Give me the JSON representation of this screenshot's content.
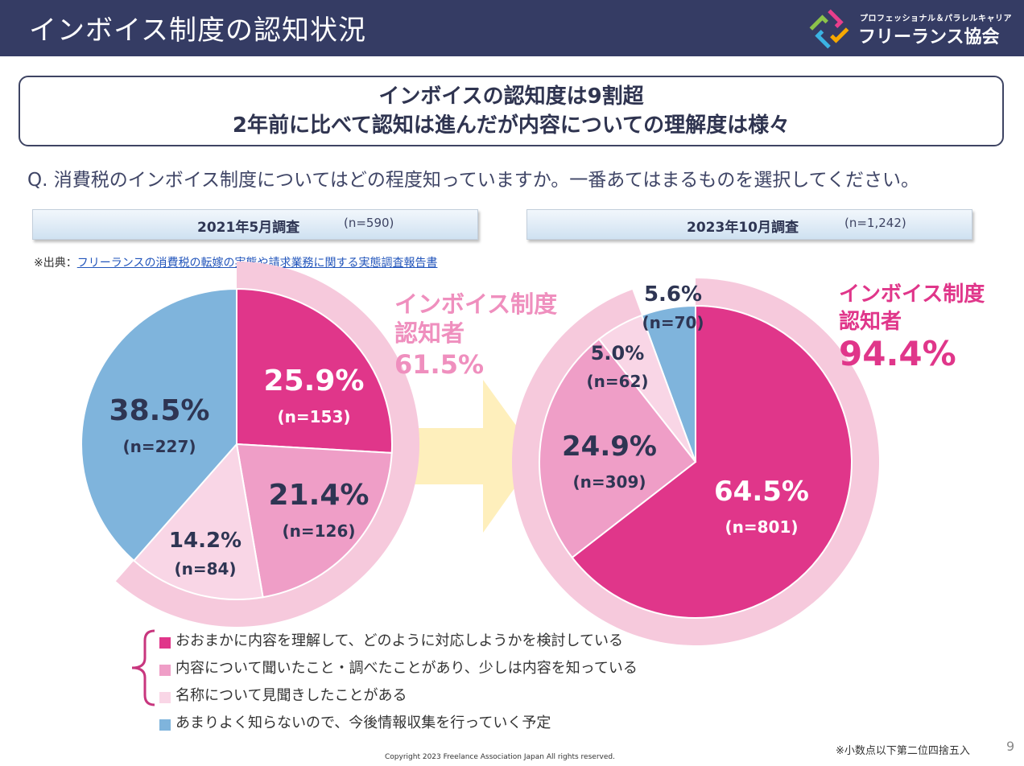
{
  "header": {
    "title": "インボイス制度の認知状況"
  },
  "logo": {
    "tagline": "プロフェッショナル＆パラレルキャリア",
    "name": "フリーランス協会",
    "colors": [
      "#e83e8c",
      "#f6a800",
      "#3bb3e3",
      "#8bc34a"
    ]
  },
  "headline": {
    "line1": "インボイスの認知度は9割超",
    "line2": "2年前に比べて認知は進んだが内容についての理解度は様々"
  },
  "question": "Q. 消費税のインボイス制度についてはどの程度知っていますか。一番あてはまるものを選択してください。",
  "surveys": {
    "left": {
      "label": "2021年5月調査",
      "n": "(n=590)"
    },
    "right": {
      "label": "2023年10月調査",
      "n": "(n=1,242)"
    }
  },
  "source": {
    "prefix": "※出典：",
    "link": "フリーランスの消費税の転嫁の実態や請求業務に関する実態調査報告書"
  },
  "awareness": {
    "left": {
      "line1": "インボイス制度",
      "line2": "認知者",
      "value": "61.5%",
      "color": "#ef8fbe"
    },
    "right": {
      "line1": "インボイス制度",
      "line2": "認知者",
      "value": "94.4%",
      "color": "#e0368a"
    }
  },
  "chart_data": [
    {
      "type": "pie",
      "title": "2021年5月調査",
      "categories": [
        "おおまかに内容を理解して、どのように対応しようかを検討している",
        "内容について聞いたこと・調べたことがあり、少しは内容を知っている",
        "名称について見聞きしたことがある",
        "あまりよく知らないので、今後情報収集を行っていく予定"
      ],
      "values": [
        25.9,
        21.4,
        14.2,
        38.5
      ],
      "labels": [
        "25.9%",
        "21.4%",
        "14.2%",
        "38.5%"
      ],
      "counts": [
        "(n=153)",
        "(n=126)",
        "(n=84)",
        "(n=227)"
      ],
      "colors": [
        "#e0368a",
        "#ef9ec7",
        "#f9d6e6",
        "#7fb4dc"
      ]
    },
    {
      "type": "pie",
      "title": "2023年10月調査",
      "categories": [
        "おおまかに内容を理解して、どのように対応しようかを検討している",
        "内容について聞いたこと・調べたことがあり、少しは内容を知っている",
        "名称について見聞きしたことがある",
        "あまりよく知らないので、今後情報収集を行っていく予定"
      ],
      "values": [
        64.5,
        24.9,
        5.0,
        5.6
      ],
      "labels": [
        "64.5%",
        "24.9%",
        "5.0%",
        "5.6%"
      ],
      "counts": [
        "(n=801)",
        "(n=309)",
        "(n=62)",
        "(n=70)"
      ],
      "colors": [
        "#e0368a",
        "#ef9ec7",
        "#f9d6e6",
        "#7fb4dc"
      ]
    }
  ],
  "legend": {
    "items": [
      {
        "label": "おおまかに内容を理解して、どのように対応しようかを検討している",
        "color": "#e0368a"
      },
      {
        "label": "内容について聞いたこと・調べたことがあり、少しは内容を知っている",
        "color": "#ef9ec7"
      },
      {
        "label": "名称について見聞きしたことがある",
        "color": "#f9d6e6"
      },
      {
        "label": "あまりよく知らないので、今後情報収集を行っていく予定",
        "color": "#7fb4dc"
      }
    ],
    "brace_color": "#c8367e"
  },
  "footer": {
    "note": "※小数点以下第二位四捨五入",
    "page": "9",
    "copyright": "Copyright 2023 Freelance Association Japan All rights reserved."
  }
}
